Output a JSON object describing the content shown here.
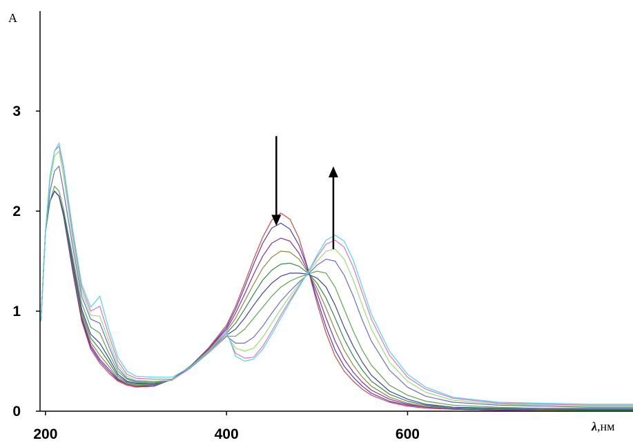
{
  "chart_data": {
    "type": "line",
    "ylabel": "A",
    "xlabel_symbol": "λ",
    "xlabel_unit": ",нм",
    "xlim": [
      194,
      849
    ],
    "ylim": [
      0,
      4
    ],
    "x_ticks": [
      200,
      400,
      600
    ],
    "x_tick_labels": [
      "200",
      "400",
      "600"
    ],
    "y_ticks": [
      0,
      1,
      2,
      3
    ],
    "y_tick_labels": [
      "0",
      "1",
      "2",
      "3"
    ],
    "grid": false,
    "legend": "none",
    "annotations": [
      {
        "type": "arrow",
        "direction": "down",
        "x": 455,
        "y_from": 2.75,
        "y_to": 1.88
      },
      {
        "type": "arrow",
        "direction": "up",
        "x": 518,
        "y_from": 1.62,
        "y_to": 2.42
      }
    ],
    "x": [
      195,
      200,
      205,
      210,
      215,
      220,
      230,
      240,
      250,
      260,
      270,
      280,
      290,
      300,
      320,
      340,
      360,
      380,
      400,
      410,
      420,
      430,
      440,
      450,
      460,
      470,
      480,
      490,
      500,
      510,
      520,
      530,
      540,
      550,
      560,
      580,
      600,
      620,
      650,
      700,
      750,
      800,
      849
    ],
    "series": [
      {
        "color": "#e0413f",
        "values": [
          0.9,
          1.8,
          2.1,
          2.2,
          2.15,
          1.95,
          1.4,
          0.9,
          0.62,
          0.48,
          0.38,
          0.3,
          0.26,
          0.24,
          0.25,
          0.32,
          0.45,
          0.63,
          0.86,
          1.05,
          1.28,
          1.52,
          1.74,
          1.91,
          1.98,
          1.92,
          1.73,
          1.42,
          1.08,
          0.78,
          0.55,
          0.4,
          0.3,
          0.22,
          0.16,
          0.09,
          0.05,
          0.03,
          0.02,
          0.01,
          0.01,
          0.01,
          0.01
        ]
      },
      {
        "color": "#4a3fc4",
        "values": [
          0.9,
          1.8,
          2.1,
          2.2,
          2.15,
          1.95,
          1.42,
          0.92,
          0.64,
          0.5,
          0.4,
          0.31,
          0.27,
          0.25,
          0.25,
          0.32,
          0.45,
          0.62,
          0.84,
          1.02,
          1.24,
          1.47,
          1.68,
          1.83,
          1.88,
          1.82,
          1.66,
          1.42,
          1.12,
          0.84,
          0.61,
          0.45,
          0.34,
          0.25,
          0.18,
          0.1,
          0.06,
          0.04,
          0.02,
          0.01,
          0.01,
          0.01,
          0.01
        ]
      },
      {
        "color": "#8a2e9c",
        "values": [
          0.9,
          1.8,
          2.1,
          2.2,
          2.15,
          1.96,
          1.44,
          0.94,
          0.66,
          0.52,
          0.42,
          0.32,
          0.27,
          0.25,
          0.26,
          0.32,
          0.45,
          0.62,
          0.82,
          0.98,
          1.17,
          1.37,
          1.55,
          1.68,
          1.73,
          1.7,
          1.58,
          1.4,
          1.18,
          0.93,
          0.7,
          0.52,
          0.39,
          0.29,
          0.21,
          0.12,
          0.07,
          0.04,
          0.02,
          0.01,
          0.01,
          0.01,
          0.01
        ]
      },
      {
        "color": "#8c8a3a",
        "values": [
          0.9,
          1.8,
          2.1,
          2.2,
          2.15,
          1.96,
          1.46,
          0.96,
          0.69,
          0.56,
          0.45,
          0.33,
          0.28,
          0.26,
          0.26,
          0.32,
          0.45,
          0.61,
          0.8,
          0.93,
          1.1,
          1.27,
          1.43,
          1.54,
          1.6,
          1.59,
          1.52,
          1.39,
          1.23,
          1.03,
          0.81,
          0.61,
          0.46,
          0.34,
          0.25,
          0.14,
          0.08,
          0.05,
          0.03,
          0.02,
          0.01,
          0.01,
          0.01
        ]
      },
      {
        "color": "#2e8a4a",
        "values": [
          0.9,
          1.8,
          2.1,
          2.2,
          2.15,
          1.97,
          1.48,
          0.99,
          0.73,
          0.62,
          0.49,
          0.35,
          0.29,
          0.27,
          0.27,
          0.32,
          0.45,
          0.6,
          0.78,
          0.88,
          1.02,
          1.17,
          1.31,
          1.41,
          1.47,
          1.48,
          1.45,
          1.38,
          1.28,
          1.13,
          0.93,
          0.72,
          0.55,
          0.41,
          0.3,
          0.17,
          0.1,
          0.06,
          0.03,
          0.02,
          0.02,
          0.01,
          0.01
        ]
      },
      {
        "color": "#3b3fa8",
        "values": [
          0.9,
          1.8,
          2.1,
          2.2,
          2.15,
          1.98,
          1.5,
          1.02,
          0.77,
          0.68,
          0.53,
          0.37,
          0.3,
          0.28,
          0.27,
          0.32,
          0.44,
          0.59,
          0.76,
          0.82,
          0.93,
          1.06,
          1.18,
          1.28,
          1.35,
          1.38,
          1.38,
          1.37,
          1.33,
          1.24,
          1.06,
          0.84,
          0.65,
          0.49,
          0.36,
          0.2,
          0.12,
          0.07,
          0.04,
          0.03,
          0.02,
          0.02,
          0.02
        ]
      },
      {
        "color": "#5aa64a",
        "values": [
          0.9,
          1.8,
          2.1,
          2.25,
          2.2,
          2.02,
          1.55,
          1.08,
          0.84,
          0.78,
          0.58,
          0.4,
          0.32,
          0.29,
          0.28,
          0.31,
          0.43,
          0.58,
          0.75,
          0.75,
          0.82,
          0.93,
          1.04,
          1.15,
          1.24,
          1.3,
          1.34,
          1.37,
          1.4,
          1.38,
          1.24,
          1.02,
          0.8,
          0.61,
          0.46,
          0.26,
          0.16,
          0.1,
          0.06,
          0.04,
          0.03,
          0.03,
          0.03
        ]
      },
      {
        "color": "#6a6ad8",
        "values": [
          0.9,
          1.8,
          2.2,
          2.4,
          2.45,
          2.2,
          1.65,
          1.15,
          0.92,
          0.88,
          0.65,
          0.43,
          0.33,
          0.3,
          0.29,
          0.31,
          0.43,
          0.58,
          0.75,
          0.68,
          0.68,
          0.74,
          0.85,
          0.98,
          1.1,
          1.2,
          1.29,
          1.37,
          1.46,
          1.52,
          1.5,
          1.36,
          1.15,
          0.91,
          0.7,
          0.41,
          0.24,
          0.15,
          0.09,
          0.06,
          0.05,
          0.04,
          0.04
        ]
      },
      {
        "color": "#96e070",
        "values": [
          0.9,
          1.8,
          2.3,
          2.55,
          2.6,
          2.35,
          1.72,
          1.2,
          0.96,
          0.95,
          0.7,
          0.46,
          0.35,
          0.31,
          0.3,
          0.31,
          0.43,
          0.58,
          0.76,
          0.63,
          0.6,
          0.63,
          0.74,
          0.88,
          1.02,
          1.15,
          1.27,
          1.38,
          1.5,
          1.6,
          1.62,
          1.52,
          1.31,
          1.06,
          0.82,
          0.49,
          0.3,
          0.19,
          0.11,
          0.07,
          0.06,
          0.05,
          0.05
        ]
      },
      {
        "color": "#e070c8",
        "values": [
          0.9,
          1.8,
          2.35,
          2.6,
          2.65,
          2.42,
          1.78,
          1.24,
          1.0,
          1.05,
          0.76,
          0.5,
          0.37,
          0.33,
          0.32,
          0.32,
          0.43,
          0.59,
          0.78,
          0.58,
          0.53,
          0.54,
          0.65,
          0.8,
          0.96,
          1.11,
          1.25,
          1.39,
          1.54,
          1.67,
          1.71,
          1.64,
          1.44,
          1.18,
          0.92,
          0.56,
          0.34,
          0.22,
          0.13,
          0.08,
          0.07,
          0.06,
          0.06
        ]
      },
      {
        "color": "#4ad8e8",
        "values": [
          0.9,
          1.8,
          2.35,
          2.6,
          2.68,
          2.45,
          1.82,
          1.27,
          1.04,
          1.15,
          0.82,
          0.54,
          0.4,
          0.35,
          0.34,
          0.34,
          0.44,
          0.6,
          0.8,
          0.55,
          0.5,
          0.52,
          0.62,
          0.77,
          0.93,
          1.09,
          1.24,
          1.39,
          1.56,
          1.71,
          1.76,
          1.7,
          1.51,
          1.24,
          0.97,
          0.6,
          0.37,
          0.24,
          0.14,
          0.09,
          0.08,
          0.07,
          0.07
        ]
      }
    ]
  }
}
